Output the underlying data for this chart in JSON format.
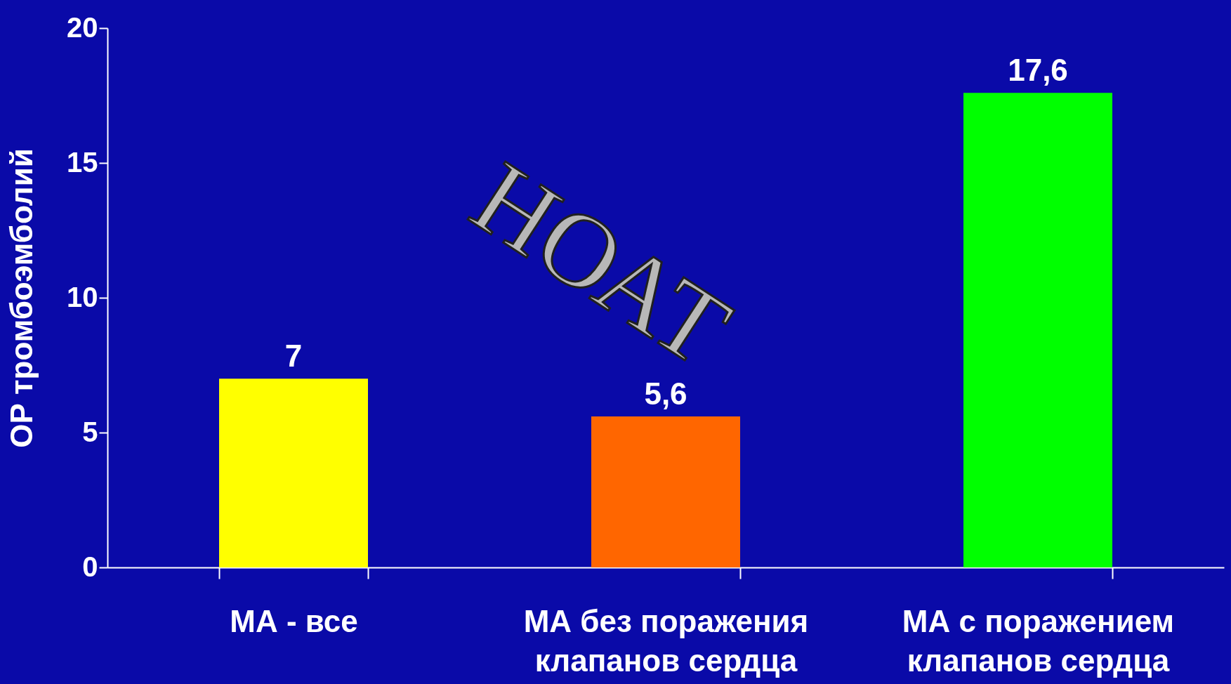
{
  "chart_data": {
    "type": "bar",
    "ylabel": "ОР  тромбоэмболий",
    "categories": [
      "МА - все",
      "МА без поражения\nклапанов сердца",
      "МА с поражением\nклапанов сердца"
    ],
    "values": [
      7,
      5.6,
      17.6
    ],
    "colors": [
      "#ffff00",
      "#ff6600",
      "#00ff00"
    ],
    "value_labels": [
      "7",
      "5,6",
      "17,6"
    ],
    "ylim": [
      0,
      20
    ],
    "yticks": [
      0,
      5,
      10,
      15,
      20
    ],
    "grid": false,
    "annotations": [
      "НОАТ"
    ]
  }
}
